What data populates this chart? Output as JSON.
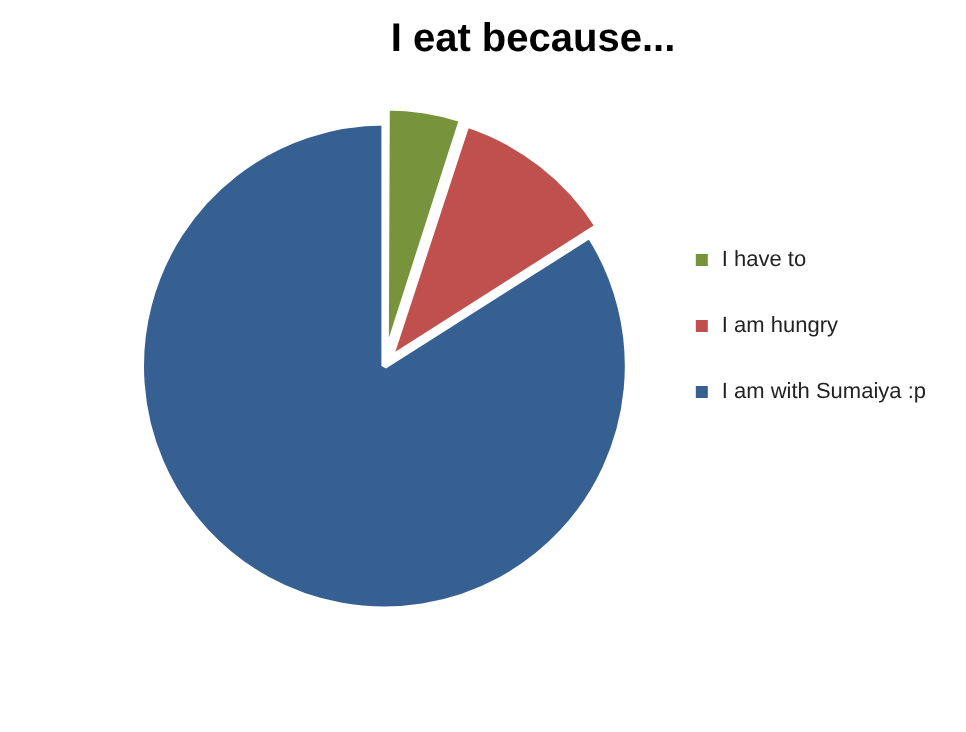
{
  "chart_data": {
    "type": "pie",
    "title": "I eat because...",
    "categories": [
      "I have to",
      "I am hungry",
      "I am with Sumaiya :p"
    ],
    "values": [
      5,
      11,
      84
    ],
    "colors": [
      "#77933c",
      "#c0504d",
      "#376092"
    ],
    "legend": "right"
  }
}
